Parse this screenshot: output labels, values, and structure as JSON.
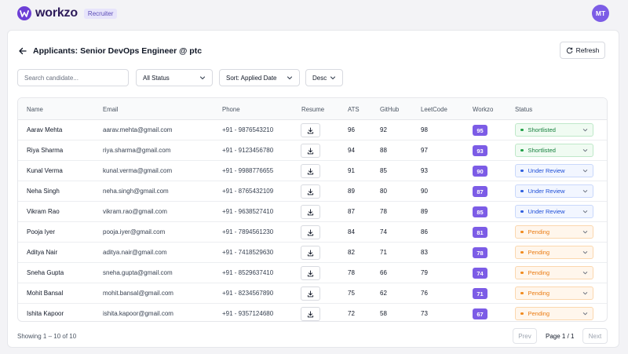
{
  "app": {
    "name": "workzo",
    "role_badge": "Recruiter",
    "avatar_initials": "MT",
    "brand_color": "#6d3fd6"
  },
  "page": {
    "title": "Applicants: Senior DevOps Engineer @ ptc",
    "refresh_label": "Refresh"
  },
  "filters": {
    "search_placeholder": "Search candidate...",
    "status_value": "All Status",
    "sort_value": "Sort: Applied Date",
    "order_value": "Desc"
  },
  "table": {
    "headers": {
      "name": "Name",
      "email": "Email",
      "phone": "Phone",
      "resume": "Resume",
      "ats": "ATS",
      "github": "GitHub",
      "leetcode": "LeetCode",
      "workzo": "Workzo",
      "status": "Status"
    },
    "rows": [
      {
        "name": "Aarav Mehta",
        "email": "aarav.mehta@gmail.com",
        "phone": "+91 - 9876543210",
        "ats": "96",
        "github": "92",
        "leetcode": "98",
        "workzo": "95",
        "status": "Shortlisted",
        "status_kind": "shortlisted"
      },
      {
        "name": "Riya Sharma",
        "email": "riya.sharma@gmail.com",
        "phone": "+91 - 9123456780",
        "ats": "94",
        "github": "88",
        "leetcode": "97",
        "workzo": "93",
        "status": "Shortlisted",
        "status_kind": "shortlisted"
      },
      {
        "name": "Kunal Verma",
        "email": "kunal.verma@gmail.com",
        "phone": "+91 - 9988776655",
        "ats": "91",
        "github": "85",
        "leetcode": "93",
        "workzo": "90",
        "status": "Under Review",
        "status_kind": "review"
      },
      {
        "name": "Neha Singh",
        "email": "neha.singh@gmail.com",
        "phone": "+91 - 8765432109",
        "ats": "89",
        "github": "80",
        "leetcode": "90",
        "workzo": "87",
        "status": "Under Review",
        "status_kind": "review"
      },
      {
        "name": "Vikram Rao",
        "email": "vikram.rao@gmail.com",
        "phone": "+91 - 9638527410",
        "ats": "87",
        "github": "78",
        "leetcode": "89",
        "workzo": "85",
        "status": "Under Review",
        "status_kind": "review"
      },
      {
        "name": "Pooja Iyer",
        "email": "pooja.iyer@gmail.com",
        "phone": "+91 - 7894561230",
        "ats": "84",
        "github": "74",
        "leetcode": "86",
        "workzo": "81",
        "status": "Pending",
        "status_kind": "pending"
      },
      {
        "name": "Aditya Nair",
        "email": "aditya.nair@gmail.com",
        "phone": "+91 - 7418529630",
        "ats": "82",
        "github": "71",
        "leetcode": "83",
        "workzo": "78",
        "status": "Pending",
        "status_kind": "pending"
      },
      {
        "name": "Sneha Gupta",
        "email": "sneha.gupta@gmail.com",
        "phone": "+91 - 8529637410",
        "ats": "78",
        "github": "66",
        "leetcode": "79",
        "workzo": "74",
        "status": "Pending",
        "status_kind": "pending"
      },
      {
        "name": "Mohit Bansal",
        "email": "mohit.bansal@gmail.com",
        "phone": "+91 - 8234567890",
        "ats": "75",
        "github": "62",
        "leetcode": "76",
        "workzo": "71",
        "status": "Pending",
        "status_kind": "pending"
      },
      {
        "name": "Ishita Kapoor",
        "email": "ishita.kapoor@gmail.com",
        "phone": "+91 - 9357124680",
        "ats": "72",
        "github": "58",
        "leetcode": "73",
        "workzo": "67",
        "status": "Pending",
        "status_kind": "pending"
      }
    ]
  },
  "footer": {
    "showing": "Showing 1 – 10 of 10",
    "prev_label": "Prev",
    "page_info": "Page 1 / 1",
    "next_label": "Next"
  },
  "icons": {
    "back": "arrow-left-icon",
    "refresh": "refresh-icon",
    "chevron": "chevron-down-icon",
    "resume": "download-icon",
    "logo": "workzo-logo-icon"
  }
}
